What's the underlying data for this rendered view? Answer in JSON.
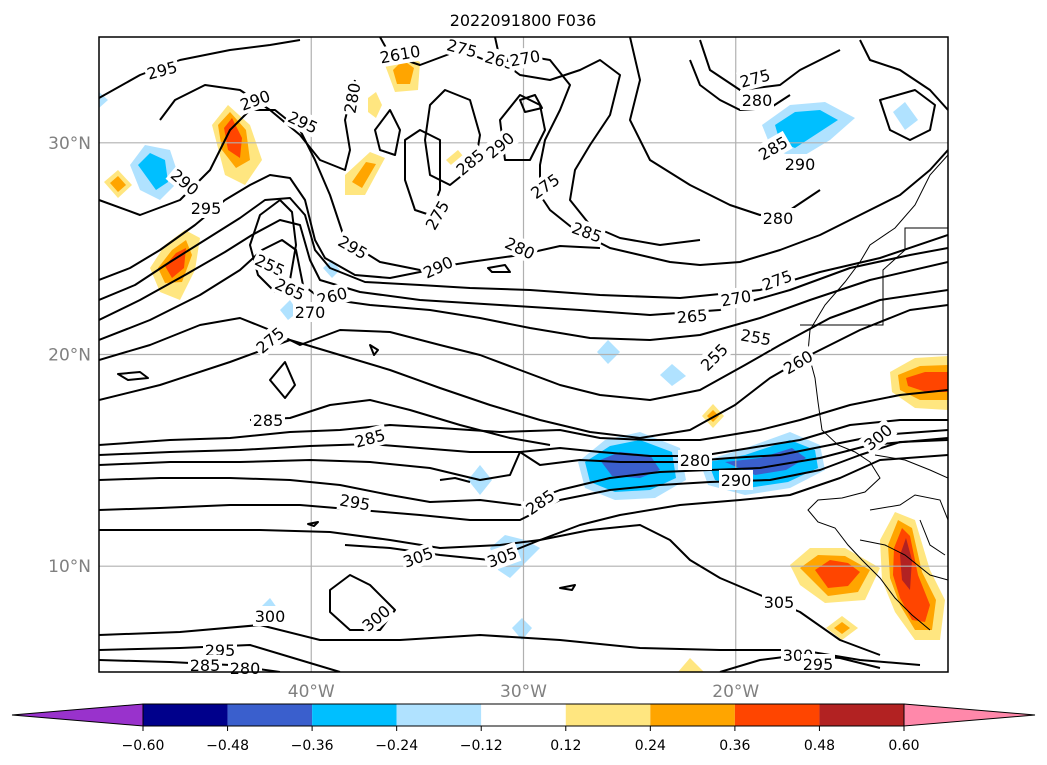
{
  "chart_data": {
    "type": "contour",
    "title": "2022091800 F036",
    "x_ticks": [
      "40°W",
      "30°W",
      "20°W"
    ],
    "x_tick_values": [
      -40,
      -30,
      -20
    ],
    "y_ticks": [
      "30°N",
      "20°N",
      "10°N"
    ],
    "y_tick_values": [
      30,
      20,
      10
    ],
    "xlim": [
      -50,
      -10
    ],
    "ylim": [
      5,
      35
    ],
    "grid": true,
    "contour_labels": [
      "295",
      "290",
      "295",
      "280",
      "2610",
      "275",
      "265",
      "270",
      "275",
      "280",
      "285",
      "290",
      "285",
      "290",
      "275",
      "290",
      "295",
      "295",
      "255",
      "265",
      "260",
      "270",
      "290",
      "275",
      "280",
      "285",
      "280",
      "275",
      "270",
      "265",
      "255",
      "260",
      "255",
      "275",
      "285",
      "285",
      "295",
      "280",
      "290",
      "300",
      "305",
      "305",
      "285",
      "300",
      "300",
      "305",
      "300",
      "295",
      "295",
      "280",
      "285"
    ],
    "colorbar": {
      "boundaries": [
        -0.6,
        -0.48,
        -0.36,
        -0.24,
        -0.12,
        0.12,
        0.24,
        0.36,
        0.48,
        0.6
      ],
      "tick_labels": [
        "−0.60",
        "−0.48",
        "−0.36",
        "−0.24",
        "−0.12",
        "0.12",
        "0.24",
        "0.36",
        "0.48",
        "0.60"
      ],
      "colors": [
        "#9932cc",
        "#00008b",
        "#3a5fcd",
        "#00bfff",
        "#b0e2ff",
        "#ffffff",
        "#ffe680",
        "#ffa500",
        "#ff4500",
        "#b22222",
        "#ff88aa"
      ],
      "extend": "both"
    }
  }
}
